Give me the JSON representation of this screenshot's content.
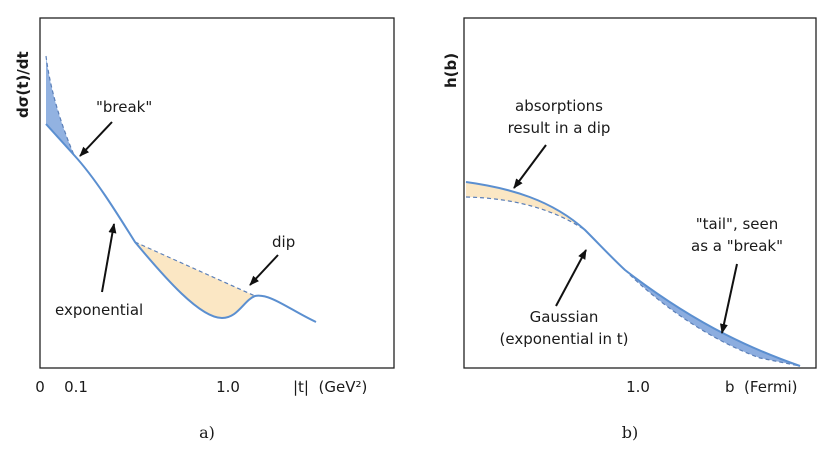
{
  "colors": {
    "curve": "#5b8fd0",
    "dashed": "#5b7fb8",
    "blue_fill": "#7fa4dc",
    "beige_fill": "#fbe7c4",
    "axis": "#222222",
    "arrow": "#111111"
  },
  "panel_a": {
    "y_label": "dσ(t)/dt",
    "x_label": "|t|  (GeV²)",
    "x_ticks": [
      "0",
      "0.1",
      "1.0"
    ],
    "annotations": {
      "break": "\"break\"",
      "dip": "dip",
      "exponential": "exponential"
    },
    "caption": "a)"
  },
  "panel_b": {
    "y_label": "h(b)",
    "x_label": "b  (Fermi)",
    "x_ticks": [
      "1.0"
    ],
    "annotations": {
      "absorptions_line1": "absorptions",
      "absorptions_line2": "result in a dip",
      "tail_line1": "\"tail\", seen",
      "tail_line2": "as a \"break\"",
      "gaussian_line1": "Gaussian",
      "gaussian_line2": "(exponential in t)"
    },
    "caption": "b)"
  }
}
